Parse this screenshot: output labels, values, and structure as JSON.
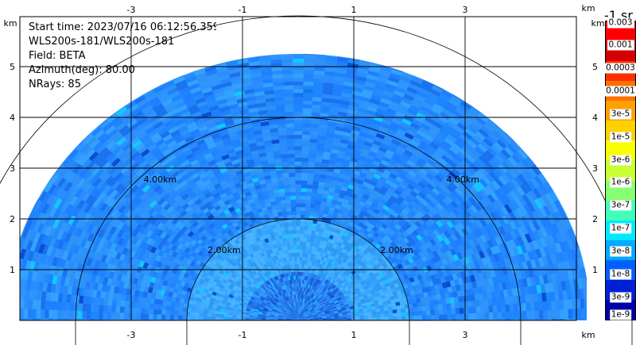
{
  "info": {
    "start_time": "Start time: 2023/07/16 06:12:56.359",
    "instrument": "WLS200s-181/WLS200s-181",
    "field": "Field: BETA",
    "azimuth": "Azimuth(deg): 80.00",
    "nrays": "NRays: 85"
  },
  "colorbar": {
    "unit": "-1 sr",
    "labels": [
      "0.003",
      "0.001",
      "0.0003",
      "0.0001",
      "3e-5",
      "1e-5",
      "3e-6",
      "1e-6",
      "3e-7",
      "1e-7",
      "3e-8",
      "1e-8",
      "3e-9",
      "1e-9"
    ],
    "colors": [
      "#ff0000",
      "#d40000",
      "#ff3000",
      "#ff7000",
      "#ff9f00",
      "#ffd000",
      "#f7ff00",
      "#c8ff34",
      "#86ff72",
      "#40ffb8",
      "#00e8ff",
      "#00aaff",
      "#0060ff",
      "#0020d8",
      "#0000a8"
    ]
  },
  "chart_data": {
    "type": "heatmap",
    "subtype": "range-height-indicator",
    "xlabel": "km",
    "ylabel": "km",
    "xlim": [
      -4.5,
      5.5
    ],
    "ylim": [
      0,
      5.5
    ],
    "x_ticks": [
      -3,
      -1,
      1,
      3
    ],
    "y_ticks": [
      1,
      2,
      3,
      4,
      5
    ],
    "grid": true,
    "range_rings_km": [
      2,
      4,
      6
    ],
    "range_ring_labels": [
      "2.00km",
      "4.00km"
    ],
    "max_range_km": 5.25,
    "elevation_deg_range": [
      -4,
      184
    ],
    "nrays": 85,
    "colorbar_position": "right"
  }
}
